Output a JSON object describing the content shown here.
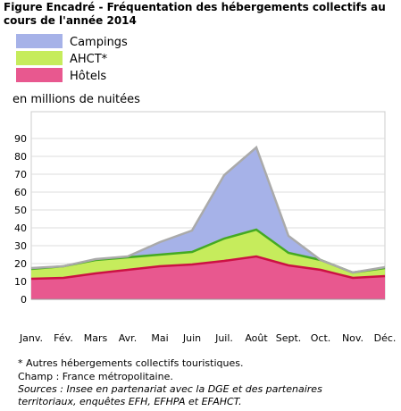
{
  "chart_data": {
    "type": "stacked-area",
    "title": [
      "Figure Encadré - Fréquentation des hébergements collectifs au",
      "cours de l'année 2014"
    ],
    "y_label": "en millions de nuitées",
    "categories": [
      "Janv.",
      "Fév.",
      "Mars",
      "Avr.",
      "Mai",
      "Juin",
      "Juil.",
      "Août",
      "Sept.",
      "Oct.",
      "Nov.",
      "Déc."
    ],
    "series": [
      {
        "name": "Hôtels",
        "color": "#e8588f",
        "line_color": "#cc1144",
        "values": [
          11.5,
          12,
          14.5,
          16.5,
          18.5,
          19.5,
          21.5,
          24,
          19,
          16.5,
          12,
          13
        ]
      },
      {
        "name": "AHCT*",
        "color": "#c6ec5c",
        "line_color": "#44aa22",
        "values": [
          5.5,
          6.5,
          7.5,
          7,
          6.5,
          7,
          12.5,
          15,
          7,
          5.5,
          3,
          4.5
        ]
      },
      {
        "name": "Campings",
        "color": "#a6b2e8",
        "line_color": "#aaaaaa",
        "values": [
          0.5,
          0,
          0.5,
          0.5,
          7,
          12,
          35.5,
          46,
          9.5,
          0,
          0,
          0.5
        ]
      }
    ],
    "ylim": [
      0,
      105
    ],
    "yticks": [
      0,
      10,
      20,
      30,
      40,
      50,
      60,
      70,
      80,
      90
    ],
    "grid": true,
    "notes": [
      "* Autres hébergements collectifs touristiques.",
      "Champ : France métropolitaine."
    ],
    "sources": [
      "Sources : Insee en partenariat avec la DGE et des partenaires",
      "territoriaux, enquêtes EFH, EFHPA et EFAHCT."
    ]
  }
}
